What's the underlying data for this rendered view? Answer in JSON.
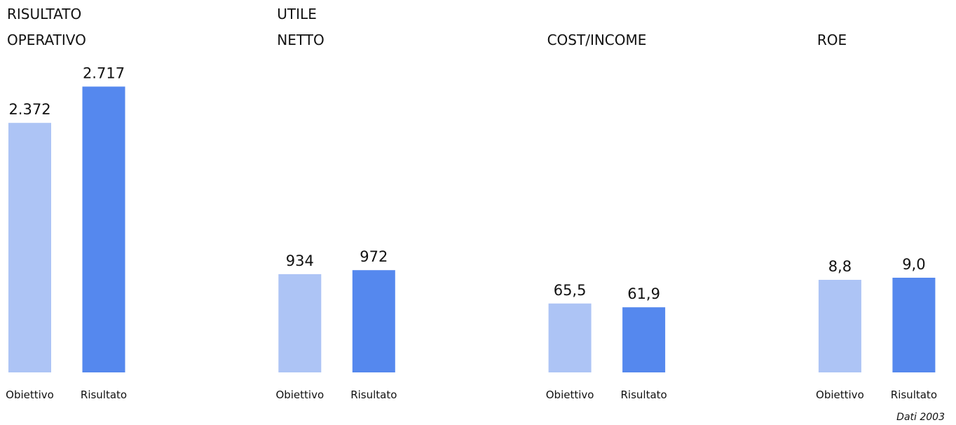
{
  "chart_data": [
    {
      "type": "bar",
      "title": [
        "RISULTATO",
        "OPERATIVO"
      ],
      "categories": [
        "Obiettivo",
        "Risultato"
      ],
      "values": [
        2372,
        2717
      ],
      "value_labels": [
        "2.372",
        "2.717"
      ],
      "colors": [
        "#adc4f5",
        "#5588ee"
      ],
      "ylim": [
        0,
        3000
      ]
    },
    {
      "type": "bar",
      "title": [
        "UTILE",
        "NETTO"
      ],
      "categories": [
        "Obiettivo",
        "Risultato"
      ],
      "values": [
        934,
        972
      ],
      "value_labels": [
        "934",
        "972"
      ],
      "colors": [
        "#adc4f5",
        "#5588ee"
      ],
      "ylim": [
        0,
        3000
      ]
    },
    {
      "type": "bar",
      "title": [
        "COST/INCOME"
      ],
      "categories": [
        "Obiettivo",
        "Risultato"
      ],
      "values": [
        65.5,
        61.9
      ],
      "value_labels": [
        "65,5",
        "61,9"
      ],
      "colors": [
        "#adc4f5",
        "#5588ee"
      ],
      "ylim": [
        0,
        300
      ]
    },
    {
      "type": "bar",
      "title": [
        "ROE"
      ],
      "categories": [
        "Obiettivo",
        "Risultato"
      ],
      "values": [
        8.8,
        9.0
      ],
      "value_labels": [
        "8,8",
        "9,0"
      ],
      "colors": [
        "#adc4f5",
        "#5588ee"
      ],
      "ylim": [
        0,
        30
      ]
    }
  ],
  "footnote": "Dati 2003"
}
